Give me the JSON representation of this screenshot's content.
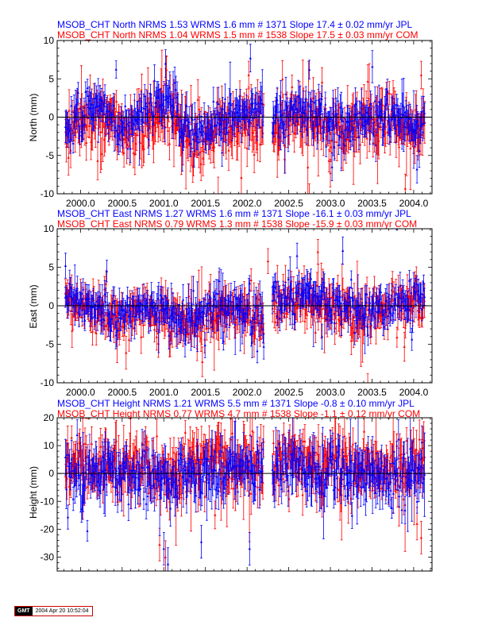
{
  "chart_data": [
    {
      "type": "scatter",
      "title_lines": [
        {
          "text": "MSOB_CHT North NRMS 1.53 WRMS  1.6 mm # 1371 Slope   17.4 ±  0.02 mm/yr JPL",
          "color": "#0000ff"
        },
        {
          "text": "MSOB_CHT North NRMS 1.04 WRMS  1.5 mm # 1538 Slope   17.5 ±  0.03 mm/yr COM",
          "color": "#ff0000"
        }
      ],
      "ylabel": "North (mm)",
      "xlim": [
        1999.72,
        2004.22
      ],
      "ylim": [
        -10,
        10
      ],
      "xticks": [
        "2000.0",
        "2000.5",
        "2001.0",
        "2001.5",
        "2002.0",
        "2002.5",
        "2003.0",
        "2003.5",
        "2004.0"
      ],
      "yticks": [
        "-10",
        "-5",
        "0",
        "5",
        "10"
      ],
      "xtick_values": [
        2000.0,
        2000.5,
        2001.0,
        2001.5,
        2002.0,
        2002.5,
        2003.0,
        2003.5,
        2004.0
      ],
      "ytick_values": [
        -10,
        -5,
        0,
        5,
        10
      ],
      "show_xtick_labels": true,
      "series": [
        {
          "name": "JPL",
          "color": "#0000ff",
          "count": 1371,
          "wrms": 1.6,
          "nrms": 1.53,
          "slope": 17.4,
          "slope_sigma": 0.02
        },
        {
          "name": "COM",
          "color": "#ff0000",
          "count": 1538,
          "wrms": 1.5,
          "nrms": 1.04,
          "slope": 17.5,
          "slope_sigma": 0.03
        }
      ],
      "gap": [
        2002.2,
        2002.3
      ],
      "envelope": [
        [
          1999.82,
          -1.0
        ],
        [
          2000.0,
          0.5
        ],
        [
          2000.2,
          1.5
        ],
        [
          2000.35,
          0.2
        ],
        [
          2000.5,
          -1.5
        ],
        [
          2000.6,
          -1.0
        ],
        [
          2000.75,
          0.5
        ],
        [
          2001.0,
          1.5
        ],
        [
          2001.1,
          2.0
        ],
        [
          2001.2,
          -0.5
        ],
        [
          2001.35,
          -2.5
        ],
        [
          2001.55,
          -1.0
        ],
        [
          2001.8,
          0.0
        ],
        [
          2002.0,
          0.5
        ],
        [
          2002.2,
          0.8
        ],
        [
          2002.3,
          0.0
        ],
        [
          2002.6,
          0.8
        ],
        [
          2002.8,
          0.5
        ],
        [
          2003.0,
          -0.5
        ],
        [
          2003.2,
          -1.5
        ],
        [
          2003.35,
          -0.5
        ],
        [
          2003.5,
          0.0
        ],
        [
          2003.7,
          0.5
        ],
        [
          2003.9,
          -0.5
        ],
        [
          2004.14,
          -1.0
        ]
      ],
      "scatter": {
        "blue": 2.0,
        "red": 2.5,
        "red_offset": -0.9
      },
      "outliers": [
        [
          2001.02,
          7.0
        ],
        [
          2001.03,
          6.2
        ],
        [
          2002.04,
          7.7
        ],
        [
          2002.02,
          5.5
        ],
        [
          2003.02,
          -6.5
        ],
        [
          2003.0,
          -7.3
        ],
        [
          2004.04,
          -6.8
        ],
        [
          2004.09,
          5.5
        ],
        [
          2001.7,
          -4.6
        ]
      ]
    },
    {
      "type": "scatter",
      "title_lines": [
        {
          "text": "MSOB_CHT East NRMS 1.27 WRMS  1.6 mm # 1371 Slope  -16.1 ±  0.03 mm/yr JPL",
          "color": "#0000ff"
        },
        {
          "text": "MSOB_CHT East NRMS 0.79 WRMS  1.3 mm # 1538 Slope  -15.9 ±  0.03 mm/yr COM",
          "color": "#ff0000"
        }
      ],
      "ylabel": "East (mm)",
      "xlim": [
        1999.72,
        2004.22
      ],
      "ylim": [
        -10,
        10
      ],
      "xticks": [
        "2000.0",
        "2000.5",
        "2001.0",
        "2001.5",
        "2002.0",
        "2002.5",
        "2003.0",
        "2003.5",
        "2004.0"
      ],
      "yticks": [
        "-10",
        "-5",
        "0",
        "5",
        "10"
      ],
      "xtick_values": [
        2000.0,
        2000.5,
        2001.0,
        2001.5,
        2002.0,
        2002.5,
        2003.0,
        2003.5,
        2004.0
      ],
      "ytick_values": [
        -10,
        -5,
        0,
        5,
        10
      ],
      "show_xtick_labels": true,
      "series": [
        {
          "name": "JPL",
          "color": "#0000ff",
          "count": 1371,
          "wrms": 1.6,
          "nrms": 1.27,
          "slope": -16.1,
          "slope_sigma": 0.03
        },
        {
          "name": "COM",
          "color": "#ff0000",
          "count": 1538,
          "wrms": 1.3,
          "nrms": 0.79,
          "slope": -15.9,
          "slope_sigma": 0.03
        }
      ],
      "gap": [
        2002.2,
        2002.3
      ],
      "envelope": [
        [
          1999.82,
          1.0
        ],
        [
          2000.0,
          0.5
        ],
        [
          2000.2,
          -0.5
        ],
        [
          2000.45,
          -1.0
        ],
        [
          2000.7,
          0.0
        ],
        [
          2000.9,
          -0.5
        ],
        [
          2001.1,
          -1.0
        ],
        [
          2001.3,
          -1.5
        ],
        [
          2001.55,
          -0.5
        ],
        [
          2001.8,
          0.0
        ],
        [
          2002.0,
          -0.5
        ],
        [
          2002.2,
          -1.5
        ],
        [
          2002.3,
          1.0
        ],
        [
          2002.6,
          1.5
        ],
        [
          2002.8,
          1.2
        ],
        [
          2003.0,
          0.5
        ],
        [
          2003.15,
          0.0
        ],
        [
          2003.35,
          -1.0
        ],
        [
          2003.55,
          0.0
        ],
        [
          2003.8,
          0.5
        ],
        [
          2004.0,
          0.8
        ],
        [
          2004.14,
          0.5
        ]
      ],
      "scatter": {
        "blue": 1.8,
        "red": 2.0,
        "red_offset": -0.6
      },
      "outliers": [
        [
          1999.82,
          5.2
        ],
        [
          2002.25,
          5.8
        ],
        [
          2002.6,
          6.5
        ],
        [
          2002.85,
          7.0
        ],
        [
          2002.9,
          -4.0
        ],
        [
          2001.4,
          -5.5
        ],
        [
          2002.2,
          -5.3
        ]
      ]
    },
    {
      "type": "scatter",
      "title_lines": [
        {
          "text": "MSOB_CHT Height NRMS 1.21 WRMS  5.5 mm # 1371 Slope   -0.8 ±  0.10 mm/yr JPL",
          "color": "#0000ff"
        },
        {
          "text": "MSOB_CHT Height NRMS 0.77 WRMS  4.7 mm # 1538 Slope   -1.1 ±  0.12 mm/yr COM",
          "color": "#ff0000"
        }
      ],
      "ylabel": "Height (mm)",
      "xlim": [
        1999.72,
        2004.22
      ],
      "ylim": [
        -35,
        20
      ],
      "xticks": [
        "2000.0",
        "2000.5",
        "2001.0",
        "2001.5",
        "2002.0",
        "2002.5",
        "2003.0",
        "2003.5",
        "2004.0"
      ],
      "yticks": [
        "-30",
        "-20",
        "-10",
        "0",
        "10",
        "20"
      ],
      "xtick_values": [
        2000.0,
        2000.5,
        2001.0,
        2001.5,
        2002.0,
        2002.5,
        2003.0,
        2003.5,
        2004.0
      ],
      "ytick_values": [
        -30,
        -20,
        -10,
        0,
        10,
        20
      ],
      "show_xtick_labels": false,
      "series": [
        {
          "name": "JPL",
          "color": "#0000ff",
          "count": 1371,
          "wrms": 5.5,
          "nrms": 1.21,
          "slope": -0.8,
          "slope_sigma": 0.1
        },
        {
          "name": "COM",
          "color": "#ff0000",
          "count": 1538,
          "wrms": 4.7,
          "nrms": 0.77,
          "slope": -1.1,
          "slope_sigma": 0.12
        }
      ],
      "gap": [
        2002.2,
        2002.3
      ],
      "envelope": [
        [
          1999.82,
          0.0
        ],
        [
          2000.3,
          1.0
        ],
        [
          2000.8,
          -1.0
        ],
        [
          2001.0,
          -3.0
        ],
        [
          2001.3,
          0.0
        ],
        [
          2001.8,
          1.5
        ],
        [
          2002.2,
          0.0
        ],
        [
          2002.3,
          2.0
        ],
        [
          2002.8,
          1.0
        ],
        [
          2003.2,
          0.0
        ],
        [
          2003.6,
          -1.0
        ],
        [
          2004.14,
          0.0
        ]
      ],
      "scatter": {
        "blue": 6.5,
        "red": 7.0,
        "red_offset": 2.5
      },
      "outliers": [
        [
          2001.0,
          -27.0
        ],
        [
          2001.02,
          -30.0
        ],
        [
          2001.05,
          -32.5
        ],
        [
          2000.95,
          -25.5
        ],
        [
          2002.03,
          -27.0
        ],
        [
          2004.09,
          -23.0
        ],
        [
          2001.45,
          -24.5
        ],
        [
          2004.04,
          -18.0
        ]
      ]
    }
  ],
  "footer": {
    "logo": "GMT",
    "timestamp": "2004 Apr 20 10:52:04"
  }
}
